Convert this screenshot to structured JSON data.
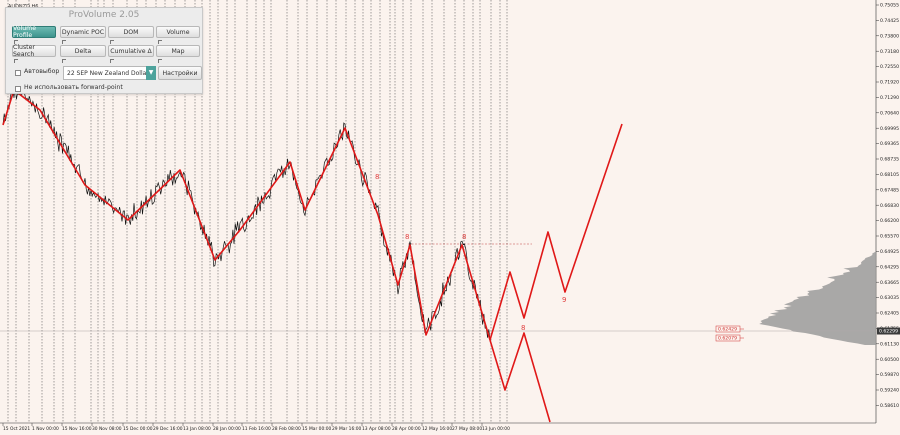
{
  "symbol_label": "AUDNZD,H6",
  "panel": {
    "title": "ProVolume 2.05",
    "buttons": [
      {
        "label": "Volume Profile",
        "active": true
      },
      {
        "label": "Dynamic POC",
        "active": false
      },
      {
        "label": "DOM",
        "active": false
      },
      {
        "label": "Volume",
        "active": false
      },
      {
        "label": "Cluster Search",
        "active": false
      },
      {
        "label": "Delta",
        "active": false
      },
      {
        "label": "Cumulative Δ",
        "active": false
      },
      {
        "label": "Map",
        "active": false
      }
    ],
    "auto_label": "Автовыбор",
    "symbol_select": "22 SEP New Zealand Dollar",
    "settings_label": "Настройки",
    "forward_label": "Не использовать forward-point"
  },
  "chart_data": {
    "type": "line",
    "price_ticks": [
      "0.75055",
      "0.74425",
      "0.73800",
      "0.73180",
      "0.72550",
      "0.71920",
      "0.71290",
      "0.70640",
      "0.69995",
      "0.69365",
      "0.68735",
      "0.68105",
      "0.67485",
      "0.66830",
      "0.66200",
      "0.65570",
      "0.64925",
      "0.64295",
      "0.63665",
      "0.63035",
      "0.62405",
      "0.61755",
      "0.61130",
      "0.60500",
      "0.59870",
      "0.59240",
      "0.58610"
    ],
    "current_price": "0.62299",
    "level_labels": [
      "0.62429",
      "0.62079"
    ],
    "time_ticks": [
      "15 Oct 2021",
      "1 Nov 00:00",
      "15 Nov 16:00",
      "30 Nov 08:00",
      "15 Dec 00:00",
      "29 Dec 16:00",
      "13 Jan 08:00",
      "28 Jan 00:00",
      "11 Feb 16:00",
      "28 Feb 08:00",
      "15 Mar 00:00",
      "29 Mar 16:00",
      "13 Apr 08:00",
      "28 Apr 00:00",
      "12 May 16:00",
      "27 May 08:00",
      "13 Jun 00:00"
    ],
    "markers": [
      "8",
      "8",
      "8",
      "8",
      "9"
    ],
    "colors": {
      "zigzag": "#e01818",
      "price": "#111111",
      "profile": "#9a9a9a",
      "grid": "#333333"
    }
  }
}
